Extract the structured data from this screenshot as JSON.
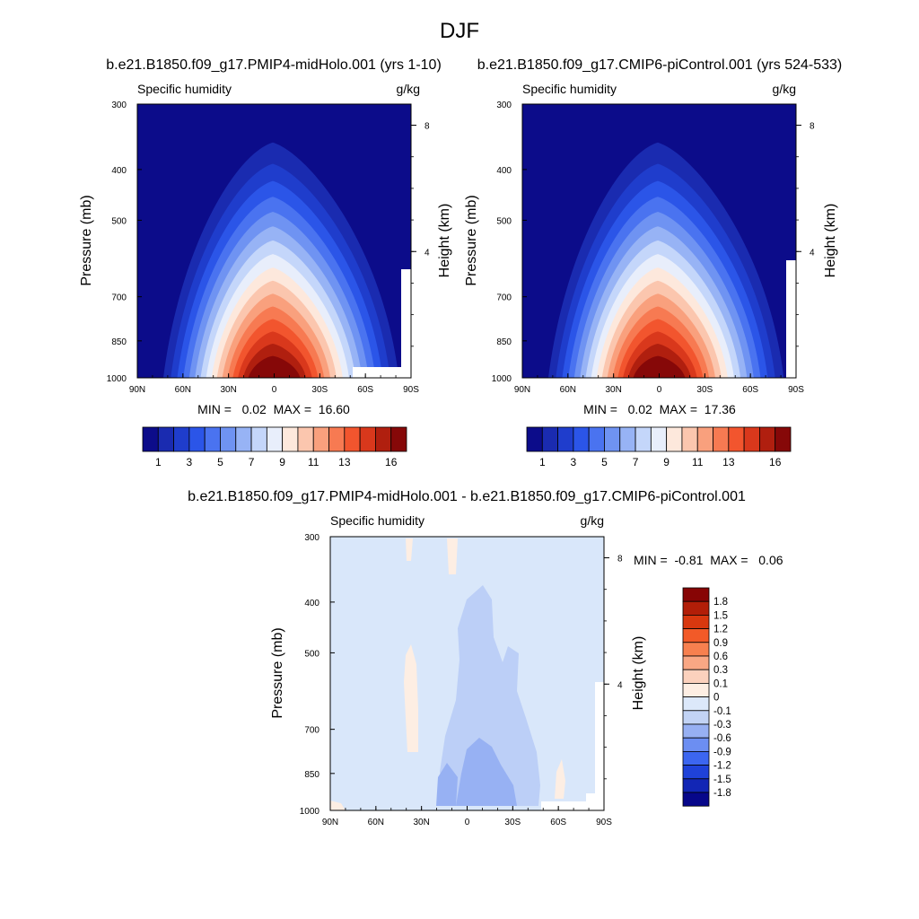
{
  "page": {
    "title": "DJF"
  },
  "colorbars": {
    "full": {
      "colors": [
        "#0c0c8a",
        "#1a2bb0",
        "#1f3dcc",
        "#2b55e8",
        "#4a73f0",
        "#6f93f2",
        "#97b3f5",
        "#c4d6fa",
        "#e8eefb",
        "#fde8dc",
        "#fbc6ae",
        "#f9a07d",
        "#f77a52",
        "#f2552e",
        "#d9381c",
        "#b01f0f",
        "#860808"
      ],
      "labels": [
        "1",
        "3",
        "5",
        "7",
        "9",
        "11",
        "13",
        "16"
      ]
    },
    "diff": {
      "colors": [
        "#07078a",
        "#1226b5",
        "#1f42d9",
        "#3c66f0",
        "#6c8ef2",
        "#97b0f3",
        "#c2d3f5",
        "#dce8fa",
        "#fdeee3",
        "#fbd1bd",
        "#f9a784",
        "#f7804f",
        "#f25a28",
        "#d8380f",
        "#b21e08",
        "#870505"
      ],
      "labels": [
        "1.8",
        "1.5",
        "1.2",
        "0.9",
        "0.6",
        "0.3",
        "0.1",
        "0",
        "-0.1",
        "-0.3",
        "-0.6",
        "-0.9",
        "-1.2",
        "-1.5",
        "-1.8"
      ]
    }
  },
  "chart_data": [
    {
      "type": "heatmap",
      "title": "b.e21.B1850.f09_g17.PMIP4-midHolo.001 (yrs 1-10)",
      "left_label": "Specific humidity",
      "right_label": "g/kg",
      "ylabel": "Pressure (mb)",
      "ylabel_right": "Height (km)",
      "x_ticks": [
        "90N",
        "60N",
        "30N",
        "0",
        "30S",
        "60S",
        "90S"
      ],
      "y_ticks": [
        "300",
        "400",
        "500",
        "700",
        "850",
        "1000"
      ],
      "y_ticks_right": [
        "8",
        "4"
      ],
      "min_text": "MIN =   0.02  MAX =  16.60",
      "min": 0.02,
      "max": 16.6,
      "bg_level": 0,
      "levels": [
        1,
        2,
        3,
        4,
        5,
        6,
        7,
        8,
        9,
        10,
        11,
        12,
        13,
        14,
        15,
        16
      ],
      "surface_value": 16.6
    },
    {
      "type": "heatmap",
      "title": "b.e21.B1850.f09_g17.CMIP6-piControl.001 (yrs 524-533)",
      "left_label": "Specific humidity",
      "right_label": "g/kg",
      "ylabel": "Pressure (mb)",
      "ylabel_right": "Height (km)",
      "x_ticks": [
        "90N",
        "60N",
        "30N",
        "0",
        "30S",
        "60S",
        "90S"
      ],
      "y_ticks": [
        "300",
        "400",
        "500",
        "700",
        "850",
        "1000"
      ],
      "y_ticks_right": [
        "8",
        "4"
      ],
      "min_text": "MIN =   0.02  MAX =  17.36",
      "min": 0.02,
      "max": 17.36,
      "bg_level": 0,
      "levels": [
        1,
        2,
        3,
        4,
        5,
        6,
        7,
        8,
        9,
        10,
        11,
        12,
        13,
        14,
        15,
        16
      ],
      "surface_value": 17.36
    },
    {
      "type": "heatmap",
      "title": "b.e21.B1850.f09_g17.PMIP4-midHolo.001 - b.e21.B1850.f09_g17.CMIP6-piControl.001",
      "left_label": "Specific humidity",
      "right_label": "g/kg",
      "ylabel": "Pressure (mb)",
      "ylabel_right": "Height (km)",
      "x_ticks": [
        "90N",
        "60N",
        "30N",
        "0",
        "30S",
        "60S",
        "90S"
      ],
      "y_ticks": [
        "300",
        "400",
        "500",
        "700",
        "850",
        "1000"
      ],
      "y_ticks_right": [
        "8",
        "4"
      ],
      "min_text": "MIN =  -0.81  MAX =   0.06",
      "min": -0.81,
      "max": 0.06,
      "bg_level": -0.05,
      "regions": [
        {
          "name": "weak-negative-column",
          "value": -0.3
        },
        {
          "name": "moderate-negative-core",
          "value": -0.6
        },
        {
          "name": "positive-patch-30N",
          "value": 0.05
        },
        {
          "name": "positive-patch-upper",
          "value": 0.05
        },
        {
          "name": "positive-patch-60S",
          "value": 0.05
        }
      ]
    }
  ]
}
